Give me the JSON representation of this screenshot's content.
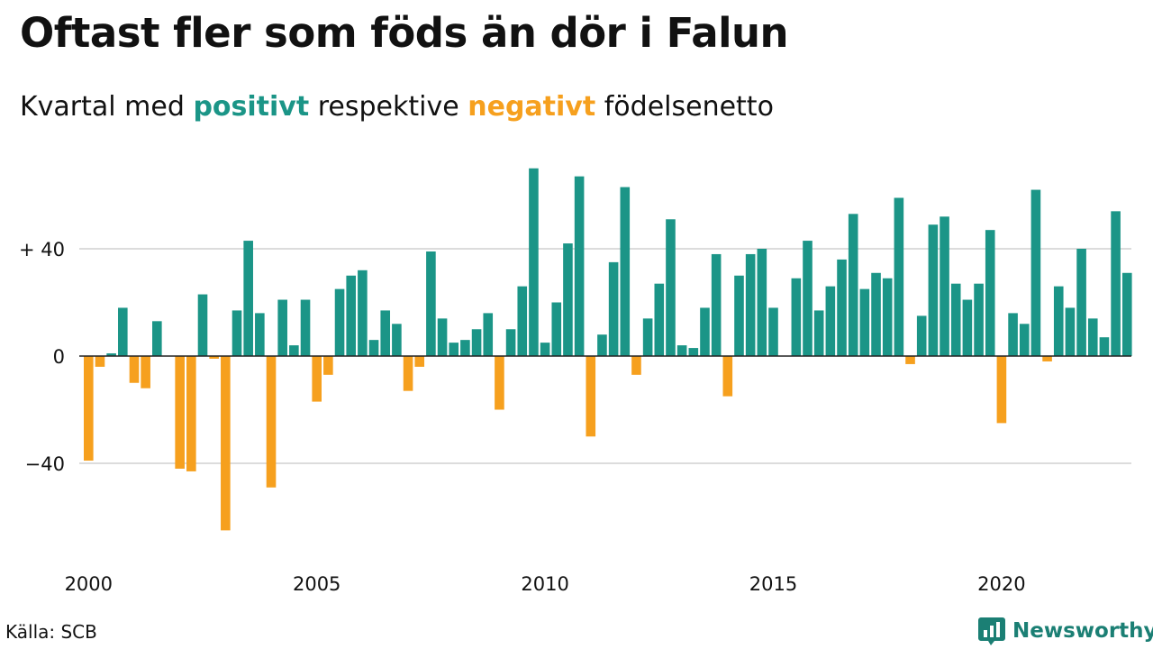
{
  "title": "Oftast fler som föds än dör i Falun",
  "subtitle": {
    "prefix": "Kvartal med",
    "positive": "positivt",
    "middle": "respektive",
    "negative": "negativt",
    "suffix": "födelsenetto"
  },
  "source": "Källa: SCB",
  "brand": "Newsworthy",
  "colors": {
    "positive": "#1b9587",
    "negative": "#f6a01e",
    "grid": "#dcdcdc",
    "text": "#111111",
    "brand": "#1b7f74"
  },
  "chart_data": {
    "type": "bar",
    "title": "Oftast fler som föds än dör i Falun",
    "subtitle": "Kvartal med positivt respektive negativt födelsenetto",
    "xlabel": "",
    "ylabel": "",
    "ylim": [
      -70,
      72
    ],
    "grid": true,
    "y_ticks": [
      {
        "value": 40,
        "label": "+ 40"
      },
      {
        "value": 0,
        "label": "0"
      },
      {
        "value": -40,
        "label": "−40"
      }
    ],
    "x_ticks": [
      "2000",
      "2005",
      "2010",
      "2015",
      "2020"
    ],
    "first_quarter": "2000 Q1",
    "categories": [
      "2000 Q1",
      "2000 Q2",
      "2000 Q3",
      "2000 Q4",
      "2001 Q1",
      "2001 Q2",
      "2001 Q3",
      "2001 Q4",
      "2002 Q1",
      "2002 Q2",
      "2002 Q3",
      "2002 Q4",
      "2003 Q1",
      "2003 Q2",
      "2003 Q3",
      "2003 Q4",
      "2004 Q1",
      "2004 Q2",
      "2004 Q3",
      "2004 Q4",
      "2005 Q1",
      "2005 Q2",
      "2005 Q3",
      "2005 Q4",
      "2006 Q1",
      "2006 Q2",
      "2006 Q3",
      "2006 Q4",
      "2007 Q1",
      "2007 Q2",
      "2007 Q3",
      "2007 Q4",
      "2008 Q1",
      "2008 Q2",
      "2008 Q3",
      "2008 Q4",
      "2009 Q1",
      "2009 Q2",
      "2009 Q3",
      "2009 Q4",
      "2010 Q1",
      "2010 Q2",
      "2010 Q3",
      "2010 Q4",
      "2011 Q1",
      "2011 Q2",
      "2011 Q3",
      "2011 Q4",
      "2012 Q1",
      "2012 Q2",
      "2012 Q3",
      "2012 Q4",
      "2013 Q1",
      "2013 Q2",
      "2013 Q3",
      "2013 Q4",
      "2014 Q1",
      "2014 Q2",
      "2014 Q3",
      "2014 Q4",
      "2015 Q1",
      "2015 Q2",
      "2015 Q3",
      "2015 Q4",
      "2016 Q1",
      "2016 Q2",
      "2016 Q3",
      "2016 Q4",
      "2017 Q1",
      "2017 Q2",
      "2017 Q3",
      "2017 Q4",
      "2018 Q1",
      "2018 Q2",
      "2018 Q3",
      "2018 Q4",
      "2019 Q1",
      "2019 Q2",
      "2019 Q3",
      "2019 Q4",
      "2020 Q1",
      "2020 Q2",
      "2020 Q3",
      "2020 Q4",
      "2021 Q1",
      "2021 Q2",
      "2021 Q3",
      "2021 Q4",
      "2022 Q1",
      "2022 Q2",
      "2022 Q3",
      "2022 Q4",
      "2023 Q1"
    ],
    "values": [
      -39,
      -4,
      1,
      18,
      -10,
      -12,
      13,
      0,
      -42,
      -43,
      23,
      -1,
      -65,
      17,
      43,
      16,
      -49,
      21,
      4,
      21,
      -17,
      -7,
      25,
      30,
      32,
      6,
      17,
      12,
      -13,
      -4,
      39,
      14,
      5,
      6,
      10,
      16,
      -20,
      10,
      26,
      70,
      5,
      20,
      42,
      67,
      -30,
      8,
      35,
      63,
      -7,
      14,
      27,
      51,
      4,
      3,
      18,
      38,
      -15,
      30,
      38,
      40,
      18,
      0,
      29,
      43,
      17,
      26,
      36,
      53,
      25,
      31,
      29,
      59,
      -3,
      15,
      49,
      52,
      27,
      21,
      27,
      47,
      -25,
      16,
      12,
      62,
      -2,
      26,
      18,
      40,
      14,
      7,
      54,
      31,
      0
    ]
  }
}
